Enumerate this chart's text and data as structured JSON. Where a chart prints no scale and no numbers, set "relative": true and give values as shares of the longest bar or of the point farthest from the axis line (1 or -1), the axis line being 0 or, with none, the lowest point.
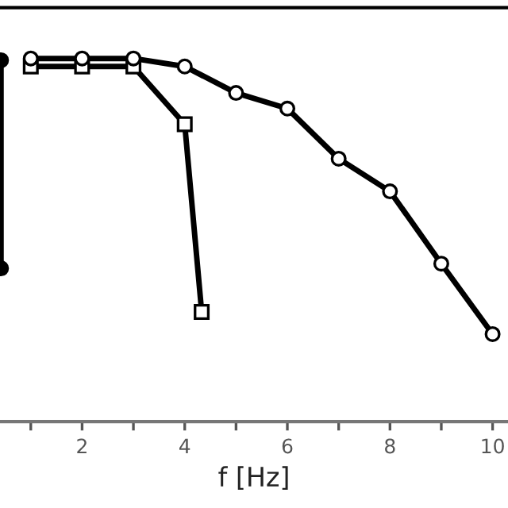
{
  "chart_data": {
    "type": "line",
    "xlabel": "f [Hz]",
    "relative": true,
    "xlim": [
      0.4,
      10.3
    ],
    "xticks": [
      {
        "value": 1,
        "label": null
      },
      2,
      {
        "value": 3,
        "label": null
      },
      4,
      {
        "value": 5,
        "label": null
      },
      6,
      {
        "value": 7,
        "label": null
      },
      8,
      {
        "value": 9,
        "label": null
      },
      10
    ],
    "grid": false,
    "series": [
      {
        "color": "#000000",
        "marker": "circle",
        "x": [
          1,
          2,
          3,
          4,
          5,
          6,
          7,
          8,
          9,
          10
        ],
        "values": [
          1,
          1,
          1,
          0.978,
          0.905,
          0.862,
          0.724,
          0.634,
          0.435,
          0.241
        ]
      },
      {
        "color": "#000000",
        "marker": "square",
        "x": [
          1,
          2,
          3,
          4,
          4.33
        ],
        "values": [
          0.978,
          0.978,
          0.978,
          0.819,
          0.302
        ]
      },
      {
        "color": "#000000",
        "marker": "filled_circle",
        "x": [
          0.42,
          0.42
        ],
        "values": [
          0.995,
          0.422
        ]
      }
    ]
  }
}
